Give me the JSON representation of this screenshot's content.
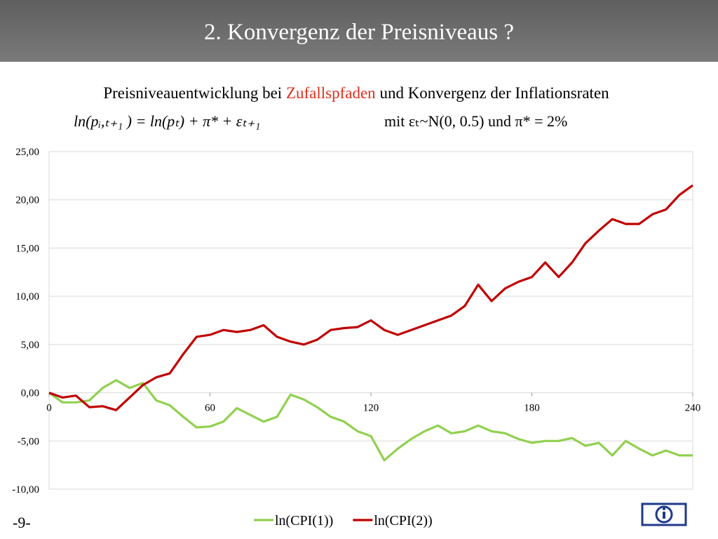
{
  "header": {
    "title": "2. Konvergenz der Preisniveaus ?"
  },
  "subtitle": {
    "before": "Preisniveauentwicklung bei",
    "highlight": "Zufallspfaden",
    "after": "und Konvergenz der Inflationsraten"
  },
  "formula": {
    "left": "ln(pᵢ,ₜ₊₁ ) =  ln(pₜ) + π* +  εₜ₊₁",
    "right": "mit  εₜ~N(0, 0.5) und  π* = 2%"
  },
  "footer": {
    "page": "-9-"
  },
  "chart_data": {
    "type": "line",
    "x": [
      0,
      5,
      10,
      15,
      20,
      25,
      30,
      35,
      40,
      45,
      50,
      55,
      60,
      65,
      70,
      75,
      80,
      85,
      90,
      95,
      100,
      105,
      110,
      115,
      120,
      125,
      130,
      135,
      140,
      145,
      150,
      155,
      160,
      165,
      170,
      175,
      180,
      185,
      190,
      195,
      200,
      205,
      210,
      215,
      220,
      225,
      230,
      235,
      240
    ],
    "series": [
      {
        "name": "ln(CPI(1))",
        "color": "#92d050",
        "values": [
          0.0,
          -1.0,
          -1.0,
          -0.8,
          0.5,
          1.3,
          0.5,
          1.0,
          -0.8,
          -1.3,
          -2.5,
          -3.6,
          -3.5,
          -3.0,
          -1.6,
          -2.3,
          -3.0,
          -2.5,
          -0.2,
          -0.7,
          -1.5,
          -2.5,
          -3.0,
          -4.0,
          -4.5,
          -7.0,
          -5.8,
          -4.8,
          -4.0,
          -3.4,
          -4.2,
          -4.0,
          -3.4,
          -4.0,
          -4.2,
          -4.8,
          -5.2,
          -5.0,
          -5.0,
          -4.7,
          -5.5,
          -5.2,
          -6.5,
          -5.0,
          -5.8,
          -6.5,
          -6.0,
          -6.5,
          -6.5
        ]
      },
      {
        "name": "ln(CPI(2))",
        "color": "#c00000",
        "values": [
          0.0,
          -0.5,
          -0.3,
          -1.5,
          -1.4,
          -1.8,
          -0.5,
          0.8,
          1.6,
          2.0,
          4.0,
          5.8,
          6.0,
          6.5,
          6.3,
          6.5,
          7.0,
          5.8,
          5.3,
          5.0,
          5.5,
          6.5,
          6.7,
          6.8,
          7.5,
          6.5,
          6.0,
          6.5,
          7.0,
          7.5,
          8.0,
          9.0,
          11.2,
          9.5,
          10.8,
          11.5,
          12.0,
          13.5,
          12.0,
          13.5,
          15.5,
          16.8,
          18.0,
          17.5,
          17.5,
          18.5,
          19.0,
          20.5,
          21.5
        ]
      }
    ],
    "xlim": [
      0,
      240
    ],
    "xticks": [
      0,
      60,
      120,
      180,
      240
    ],
    "ylim": [
      -10,
      25
    ],
    "yticks": [
      {
        "value": -10,
        "label": "-10,00"
      },
      {
        "value": -5,
        "label": "-5,00"
      },
      {
        "value": 0,
        "label": "0,00"
      },
      {
        "value": 5,
        "label": "5,00"
      },
      {
        "value": 10,
        "label": "10,00"
      },
      {
        "value": 15,
        "label": "15,00"
      },
      {
        "value": 20,
        "label": "20,00"
      },
      {
        "value": 25,
        "label": "25,00"
      }
    ],
    "grid": true,
    "legend": "bottom"
  }
}
